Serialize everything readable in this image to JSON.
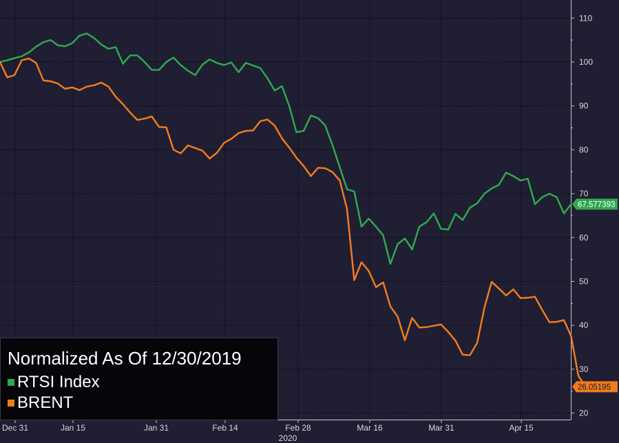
{
  "chart_data": {
    "type": "line",
    "title": "Normalized As Of 12/30/2019",
    "x_tick_labels": [
      "Dec 31",
      "Jan 15",
      "Jan 31",
      "Feb 14",
      "Feb 28",
      "Mar 16",
      "Mar 31",
      "Apr 15"
    ],
    "year_label": "2020",
    "y_ticks": [
      20,
      30,
      40,
      50,
      60,
      70,
      80,
      90,
      100,
      110
    ],
    "ylim": [
      17.5,
      113
    ],
    "grid": true,
    "legend_position": "bottom-left",
    "series": [
      {
        "name": "RTSI Index",
        "color": "#2fa84f",
        "last_value_label": "67.577393",
        "values": [
          100,
          100.4,
          100.9,
          101.3,
          102.2,
          103.5,
          104.5,
          105,
          103.8,
          103.6,
          104.3,
          106,
          106.5,
          105.5,
          104,
          103,
          103.4,
          99.6,
          101.5,
          101.5,
          100,
          98.2,
          98.2,
          100,
          101,
          99.3,
          98,
          97,
          99.4,
          100.6,
          99.8,
          99.3,
          99.9,
          97.7,
          99.8,
          99.2,
          98.6,
          96.3,
          93.5,
          94.5,
          90,
          84,
          84.3,
          87.8,
          87.2,
          85.5,
          81,
          76,
          71,
          70.5,
          62.5,
          64.3,
          62.5,
          60.5,
          54,
          58.5,
          59.8,
          57.3,
          62.5,
          63.5,
          65.5,
          62,
          61.8,
          65.4,
          64,
          66.8,
          67.8,
          70,
          71.2,
          72,
          74.8,
          74,
          73,
          73.4,
          67.6,
          69.2,
          70,
          69.2,
          65.5,
          67.6
        ]
      },
      {
        "name": "BRENT",
        "color": "#f07b1e",
        "last_value_label": "26.05195",
        "values": [
          100,
          96.5,
          97,
          100.4,
          100.8,
          99.8,
          95.8,
          95.6,
          95.1,
          93.9,
          94.2,
          93.6,
          94.4,
          94.7,
          95.3,
          94.4,
          92.1,
          90.4,
          88.5,
          86.8,
          87.1,
          87.6,
          85.2,
          85.1,
          80,
          79.2,
          81,
          80.4,
          79.8,
          78,
          79.3,
          81.6,
          82.5,
          83.8,
          84.3,
          84.4,
          86.5,
          86.9,
          85.5,
          82.6,
          80.5,
          78.2,
          76.3,
          74,
          75.9,
          75.8,
          74.9,
          73,
          66.5,
          50.3,
          54.4,
          52.4,
          48.7,
          49.8,
          44.3,
          42,
          36.6,
          41.7,
          39.5,
          39.6,
          39.9,
          40.2,
          38.5,
          36.5,
          33.3,
          33.2,
          36,
          44,
          49.9,
          48.4,
          46.8,
          48.2,
          46.2,
          46.3,
          46.5,
          43.5,
          40.7,
          40.8,
          41.2,
          37.5,
          28.5,
          26
        ]
      }
    ]
  }
}
